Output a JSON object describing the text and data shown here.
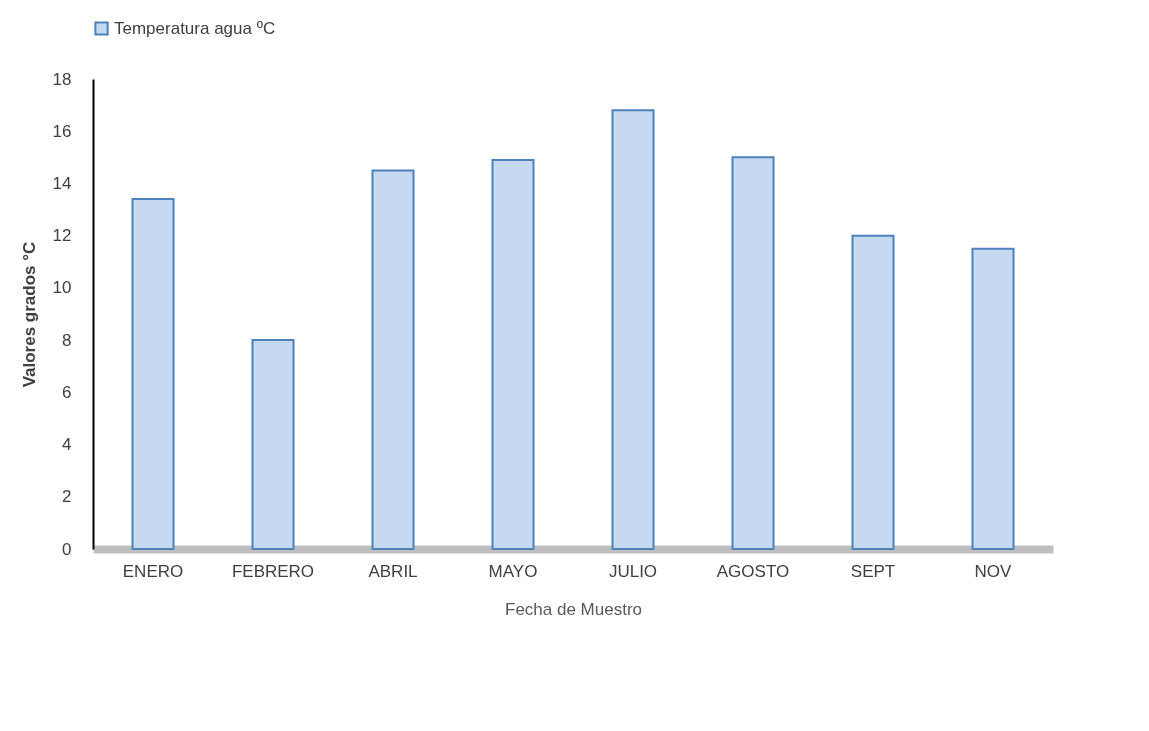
{
  "chart_data": {
    "type": "bar",
    "xlabel": "Fecha de Muestro",
    "ylabel": "Valores grados °C",
    "categories": [
      "ENERO",
      "FEBRERO",
      "ABRIL",
      "MAYO",
      "JULIO",
      "AGOSTO",
      "SEPT",
      "NOV"
    ],
    "series": [
      {
        "name": "Temperatura agua ºC",
        "color": "#c5d9f1",
        "values": [
          13.4,
          8.0,
          14.5,
          14.9,
          16.8,
          15.0,
          12.0,
          11.5
        ]
      }
    ],
    "ylim": [
      0,
      18
    ],
    "yticks": [
      0,
      2,
      4,
      6,
      8,
      10,
      12,
      14,
      16,
      18
    ],
    "grid": false,
    "legend": "top"
  }
}
